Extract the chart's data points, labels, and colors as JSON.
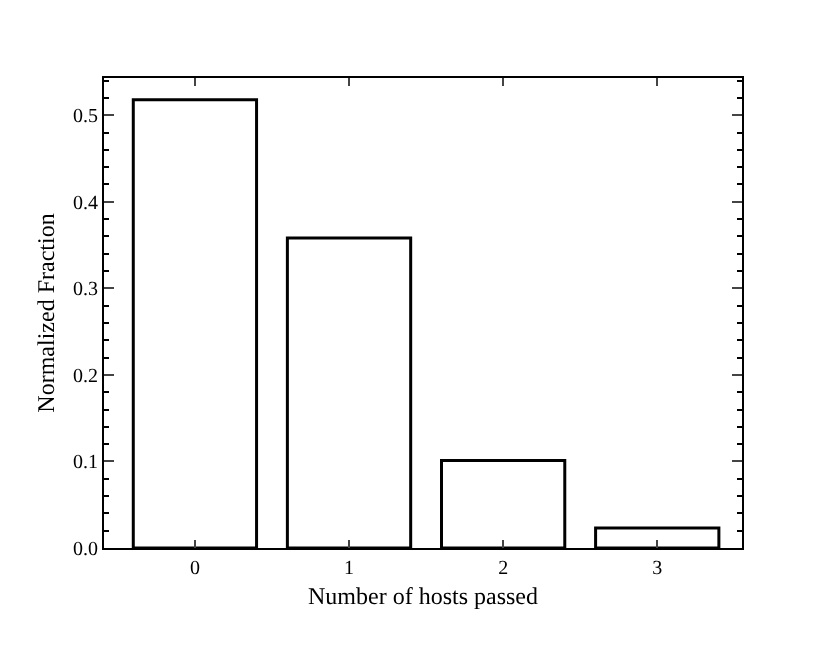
{
  "chart_data": {
    "type": "bar",
    "xlabel": "Number of hosts passed",
    "ylabel": "Normalized Fraction",
    "categories": [
      "0",
      "1",
      "2",
      "3"
    ],
    "values": [
      0.518,
      0.358,
      0.101,
      0.023
    ],
    "color": "#ffffff",
    "ylim": [
      0,
      0.543
    ],
    "yticks": [
      {
        "value": 0,
        "label": "0.0"
      },
      0.1,
      0.2,
      0.3,
      0.4,
      0.5
    ]
  }
}
